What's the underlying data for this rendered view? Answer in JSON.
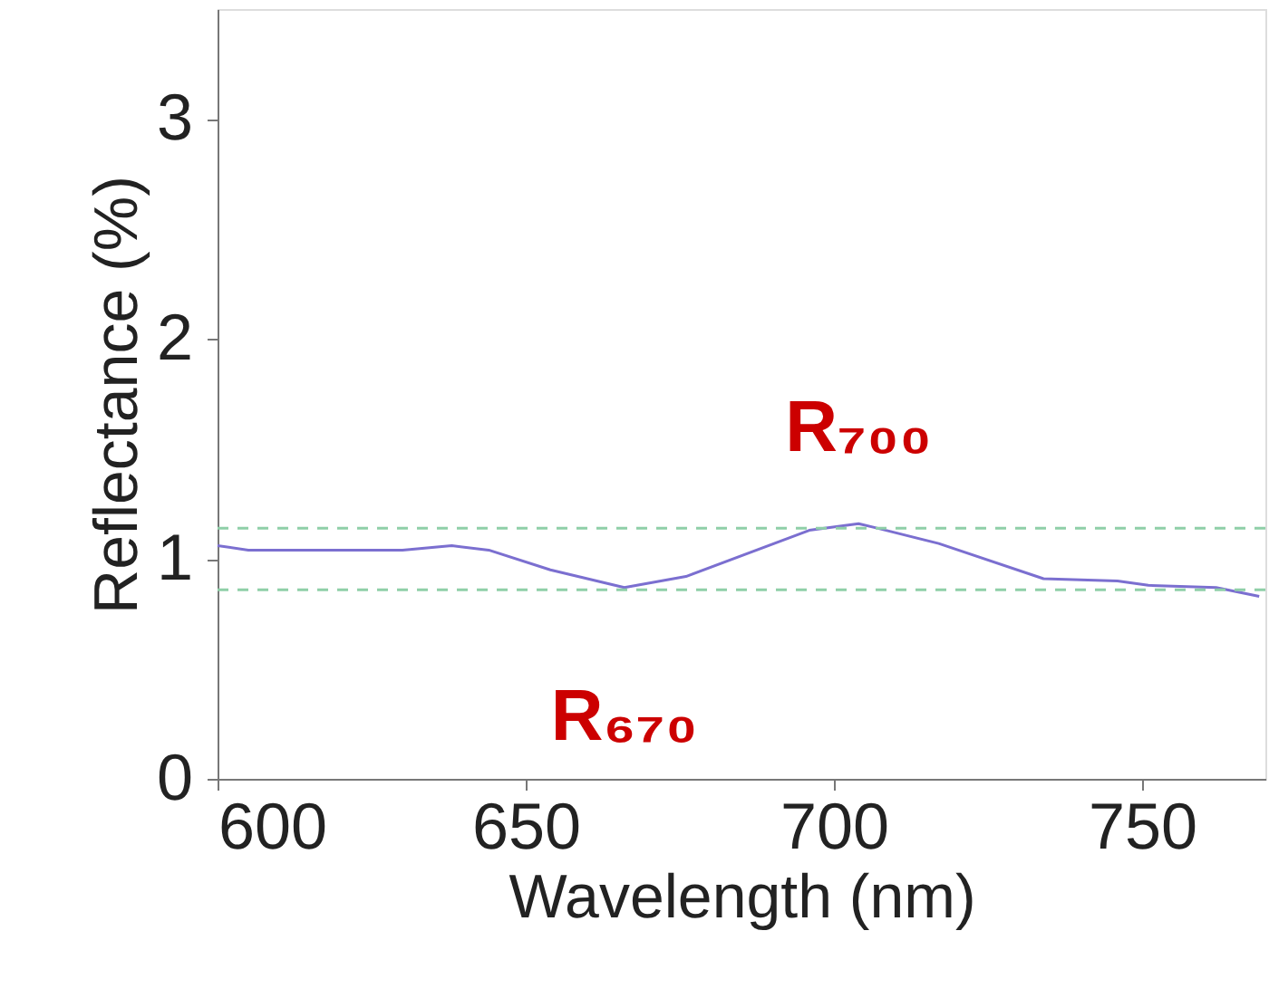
{
  "chart_data": {
    "type": "line",
    "xlabel": "Wavelength (nm)",
    "ylabel": "Reflectance (%)",
    "x": [
      600,
      605,
      630,
      638,
      644,
      654,
      666,
      676,
      696,
      704,
      707,
      717,
      734,
      746,
      751,
      762,
      769
    ],
    "series": [
      {
        "color": "#7b6fd0",
        "values": [
          1.06,
          1.04,
          1.04,
          1.06,
          1.04,
          0.95,
          0.87,
          0.92,
          1.13,
          1.16,
          1.14,
          1.07,
          0.91,
          0.9,
          0.88,
          0.87,
          0.83
        ]
      }
    ],
    "xlim": [
      600,
      770
    ],
    "xticks": [
      600,
      650,
      700,
      750
    ],
    "ylim": [
      0,
      3.5
    ],
    "yticks": [
      0,
      1,
      2,
      3
    ],
    "ref_lines": [
      {
        "axis": "y",
        "value": 1.14,
        "color": "#8fcfa8",
        "line_style": "dashed"
      },
      {
        "axis": "y",
        "value": 0.86,
        "color": "#8fcfa8",
        "line_style": "dashed"
      }
    ],
    "annotations": [
      {
        "text": "R₇₀₀",
        "x": 704,
        "y": 1.16
      },
      {
        "text": "R₆₇₀",
        "x": 666,
        "y": 0.87
      }
    ],
    "grid": false,
    "marker": "none",
    "line_style": "solid"
  }
}
